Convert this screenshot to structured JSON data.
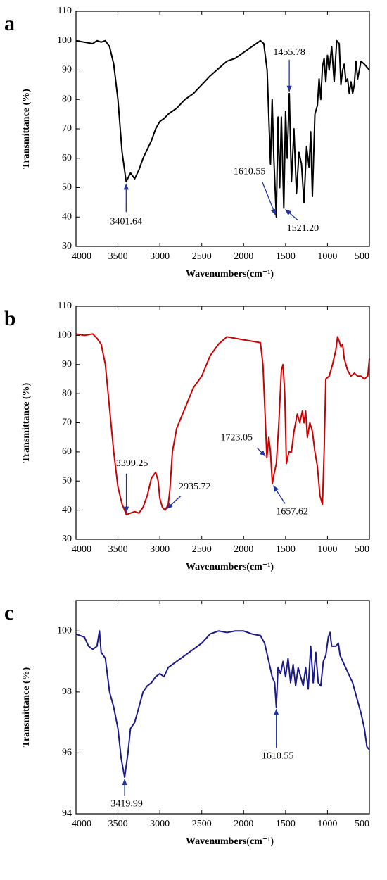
{
  "chart_data": [
    {
      "type": "line",
      "panel_label": "a",
      "x_label": "Wavenumbers(cm⁻¹)",
      "y_label": "Transmittance (%)",
      "color": "#000000",
      "xlim": [
        4000,
        500
      ],
      "xticks": [
        4000,
        3500,
        3000,
        2500,
        2000,
        1500,
        1000,
        500
      ],
      "ylim": [
        30,
        110
      ],
      "yticks": [
        30,
        40,
        50,
        60,
        70,
        80,
        90,
        100,
        110
      ],
      "x": [
        4000,
        3900,
        3800,
        3750,
        3700,
        3650,
        3600,
        3550,
        3500,
        3450,
        3401.64,
        3350,
        3300,
        3250,
        3200,
        3150,
        3100,
        3050,
        3000,
        2950,
        2900,
        2800,
        2700,
        2600,
        2500,
        2400,
        2300,
        2200,
        2100,
        2000,
        1900,
        1800,
        1760,
        1720,
        1680,
        1660,
        1640,
        1610.55,
        1590,
        1570,
        1550,
        1521.2,
        1500,
        1480,
        1455.78,
        1430,
        1400,
        1370,
        1340,
        1310,
        1280,
        1250,
        1220,
        1200,
        1180,
        1150,
        1120,
        1100,
        1080,
        1060,
        1040,
        1020,
        1000,
        980,
        950,
        920,
        890,
        860,
        840,
        820,
        800,
        780,
        760,
        740,
        720,
        700,
        680,
        660,
        640,
        620,
        600,
        560,
        530,
        500
      ],
      "values": [
        100,
        99.5,
        99,
        100,
        99.5,
        100,
        98,
        92,
        80,
        62,
        52,
        55,
        53,
        56,
        60,
        63,
        66,
        70,
        72.5,
        73.5,
        75,
        77,
        80,
        82,
        85,
        88,
        90.5,
        93,
        94,
        96,
        98,
        100,
        99,
        90,
        58,
        80,
        60,
        40,
        74,
        50,
        74,
        43,
        76,
        60,
        82,
        52,
        70,
        48,
        62,
        58,
        45,
        64,
        57,
        69,
        47,
        75,
        78,
        87,
        80,
        91,
        94,
        86,
        95,
        90,
        98,
        86,
        100,
        99,
        85,
        90,
        92,
        86,
        87,
        82,
        86,
        82,
        85,
        93,
        87,
        90,
        93,
        92,
        91,
        90
      ],
      "annotations": [
        {
          "x": 3401.64,
          "y": 52,
          "label": "3401.64"
        },
        {
          "x": 1610.55,
          "y": 40,
          "label": "1610.55"
        },
        {
          "x": 1521.2,
          "y": 43,
          "label": "1521.20"
        },
        {
          "x": 1455.78,
          "y": 82,
          "label": "1455.78"
        }
      ]
    },
    {
      "type": "line",
      "panel_label": "b",
      "x_label": "Wavenumbers(cm⁻¹)",
      "y_label": "Transmittance (%)",
      "color": "#cc0000",
      "xlim": [
        4000,
        500
      ],
      "xticks": [
        4000,
        3500,
        3000,
        2500,
        2000,
        1500,
        1000,
        500
      ],
      "ylim": [
        30,
        110
      ],
      "yticks": [
        30,
        40,
        50,
        60,
        70,
        80,
        90,
        100,
        110
      ],
      "x": [
        4000,
        3900,
        3800,
        3750,
        3700,
        3650,
        3600,
        3550,
        3500,
        3450,
        3399.25,
        3350,
        3300,
        3250,
        3200,
        3150,
        3100,
        3050,
        3020,
        3000,
        2970,
        2935.72,
        2900,
        2880,
        2850,
        2800,
        2700,
        2600,
        2500,
        2400,
        2300,
        2200,
        2100,
        2000,
        1900,
        1800,
        1770,
        1740,
        1723.05,
        1700,
        1680,
        1657.62,
        1640,
        1610,
        1580,
        1550,
        1530,
        1510,
        1490,
        1460,
        1430,
        1400,
        1360,
        1330,
        1300,
        1280,
        1260,
        1240,
        1210,
        1180,
        1150,
        1120,
        1090,
        1060,
        1040,
        1020,
        980,
        940,
        900,
        880,
        860,
        840,
        820,
        800,
        760,
        720,
        680,
        640,
        600,
        560,
        520,
        500
      ],
      "values": [
        100.5,
        100,
        100.5,
        99,
        97,
        90,
        75,
        60,
        48,
        42,
        38.5,
        39,
        39.5,
        39,
        41,
        45,
        51,
        53,
        50,
        44,
        41,
        40,
        42,
        47,
        60,
        68,
        75,
        82,
        86,
        93,
        97,
        99.5,
        99,
        98.5,
        98,
        97.5,
        90,
        70,
        58,
        65,
        60,
        49,
        52,
        56,
        70,
        88,
        90,
        80,
        56,
        60,
        60,
        67,
        73,
        70,
        74,
        70,
        74,
        65,
        70,
        67,
        60,
        55,
        45,
        42,
        60,
        85,
        86,
        90,
        95,
        99.5,
        98,
        96,
        97,
        92,
        88,
        86,
        87,
        86,
        86,
        85,
        86,
        92
      ],
      "annotations": [
        {
          "x": 3399.25,
          "y": 38.5,
          "label": "3399.25"
        },
        {
          "x": 2935.72,
          "y": 40,
          "label": "2935.72"
        },
        {
          "x": 1723.05,
          "y": 58,
          "label": "1723.05"
        },
        {
          "x": 1657.62,
          "y": 49,
          "label": "1657.62"
        }
      ]
    },
    {
      "type": "line",
      "panel_label": "c",
      "x_label": "Wavenumbers(cm⁻¹)",
      "y_label": "Transmittance (%)",
      "color": "#1a1a8c",
      "xlim": [
        4000,
        500
      ],
      "xticks": [
        4000,
        3500,
        3000,
        2500,
        2000,
        1500,
        1000,
        500
      ],
      "ylim": [
        94,
        101
      ],
      "yticks": [
        94,
        96,
        98,
        100
      ],
      "x": [
        4000,
        3950,
        3900,
        3850,
        3800,
        3750,
        3720,
        3700,
        3650,
        3600,
        3550,
        3500,
        3460,
        3419.99,
        3380,
        3350,
        3300,
        3250,
        3200,
        3150,
        3100,
        3050,
        3000,
        2950,
        2900,
        2800,
        2700,
        2600,
        2500,
        2400,
        2300,
        2200,
        2100,
        2000,
        1900,
        1800,
        1750,
        1700,
        1660,
        1630,
        1610.55,
        1590,
        1560,
        1530,
        1500,
        1470,
        1440,
        1410,
        1380,
        1350,
        1320,
        1290,
        1260,
        1230,
        1200,
        1170,
        1140,
        1110,
        1080,
        1050,
        1020,
        990,
        970,
        950,
        920,
        900,
        870,
        850,
        800,
        750,
        700,
        650,
        600,
        560,
        530,
        500
      ],
      "values": [
        99.9,
        99.85,
        99.8,
        99.5,
        99.4,
        99.5,
        100,
        99.3,
        99.1,
        98,
        97.5,
        96.8,
        95.8,
        95.2,
        96,
        96.8,
        97,
        97.5,
        98,
        98.2,
        98.3,
        98.5,
        98.6,
        98.5,
        98.8,
        99,
        99.2,
        99.4,
        99.6,
        99.9,
        100,
        99.95,
        100,
        100,
        99.9,
        99.85,
        99.6,
        99,
        98.5,
        98.3,
        97.5,
        98.8,
        98.6,
        99,
        98.5,
        99.1,
        98.3,
        98.9,
        98.2,
        98.8,
        98.5,
        98.2,
        98.8,
        98.1,
        99.5,
        98.3,
        99.3,
        98.3,
        98.2,
        99,
        99.2,
        99.8,
        99.95,
        99.5,
        99.5,
        99.5,
        99.6,
        99.2,
        98.9,
        98.6,
        98.3,
        97.8,
        97.3,
        96.8,
        96.2,
        96.1
      ],
      "annotations": [
        {
          "x": 3419.99,
          "y": 95.2,
          "label": "3419.99"
        },
        {
          "x": 1610.55,
          "y": 97.5,
          "label": "1610.55"
        }
      ]
    }
  ]
}
